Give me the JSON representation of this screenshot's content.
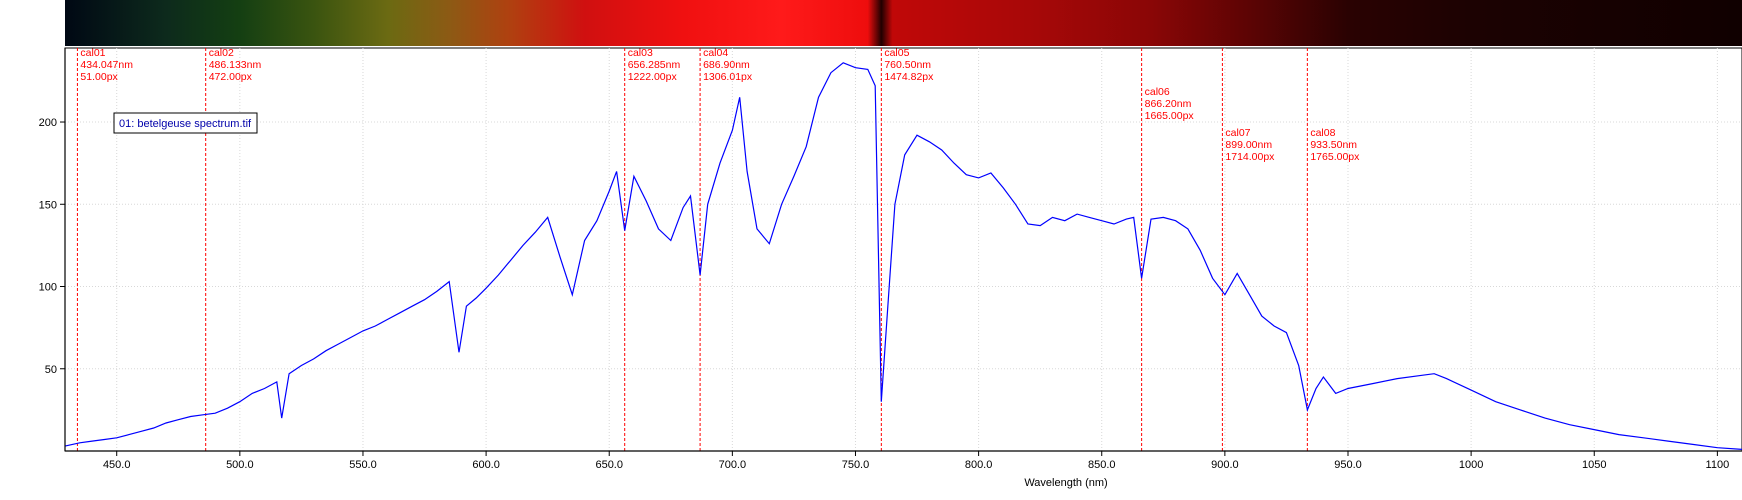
{
  "chart_data": {
    "type": "line",
    "title": "",
    "xlabel": "Wavelength (nm)",
    "ylabel": "",
    "xlim": [
      429,
      1110
    ],
    "ylim": [
      0,
      245
    ],
    "x_ticks": [
      {
        "value": 450,
        "label": "450.0"
      },
      {
        "value": 500,
        "label": "500.0"
      },
      {
        "value": 550,
        "label": "550.0"
      },
      {
        "value": 600,
        "label": "600.0"
      },
      {
        "value": 650,
        "label": "650.0"
      },
      {
        "value": 700,
        "label": "700.0"
      },
      {
        "value": 750,
        "label": "750.0"
      },
      {
        "value": 800,
        "label": "800.0"
      },
      {
        "value": 850,
        "label": "850.0"
      },
      {
        "value": 900,
        "label": "900.0"
      },
      {
        "value": 950,
        "label": "950.0"
      },
      {
        "value": 1000,
        "label": "1000"
      },
      {
        "value": 1050,
        "label": "1050"
      },
      {
        "value": 1100,
        "label": "1100"
      }
    ],
    "y_ticks": [
      {
        "value": 50,
        "label": "50"
      },
      {
        "value": 100,
        "label": "100"
      },
      {
        "value": 150,
        "label": "150"
      },
      {
        "value": 200,
        "label": "200"
      }
    ],
    "grid": true,
    "legend": {
      "label": "01: betelgeuse spectrum.tif",
      "position": "top-left"
    },
    "series": [
      {
        "name": "01: betelgeuse spectrum.tif",
        "color": "#0000ff",
        "points": [
          [
            429,
            3
          ],
          [
            435,
            5
          ],
          [
            440,
            6
          ],
          [
            445,
            7
          ],
          [
            450,
            8
          ],
          [
            455,
            10
          ],
          [
            460,
            12
          ],
          [
            465,
            14
          ],
          [
            470,
            17
          ],
          [
            475,
            19
          ],
          [
            480,
            21
          ],
          [
            485,
            22
          ],
          [
            490,
            23
          ],
          [
            495,
            26
          ],
          [
            500,
            30
          ],
          [
            505,
            35
          ],
          [
            510,
            38
          ],
          [
            515,
            42
          ],
          [
            517,
            20
          ],
          [
            520,
            47
          ],
          [
            525,
            52
          ],
          [
            530,
            56
          ],
          [
            535,
            61
          ],
          [
            540,
            65
          ],
          [
            545,
            69
          ],
          [
            550,
            73
          ],
          [
            555,
            76
          ],
          [
            560,
            80
          ],
          [
            565,
            84
          ],
          [
            570,
            88
          ],
          [
            575,
            92
          ],
          [
            580,
            97
          ],
          [
            585,
            103
          ],
          [
            589,
            60
          ],
          [
            592,
            88
          ],
          [
            596,
            93
          ],
          [
            600,
            99
          ],
          [
            605,
            107
          ],
          [
            610,
            116
          ],
          [
            615,
            125
          ],
          [
            620,
            133
          ],
          [
            625,
            142
          ],
          [
            630,
            118
          ],
          [
            635,
            95
          ],
          [
            640,
            128
          ],
          [
            645,
            140
          ],
          [
            650,
            158
          ],
          [
            653,
            170
          ],
          [
            656.3,
            134
          ],
          [
            660,
            167
          ],
          [
            665,
            152
          ],
          [
            670,
            135
          ],
          [
            675,
            128
          ],
          [
            680,
            148
          ],
          [
            683,
            155
          ],
          [
            686.9,
            107
          ],
          [
            690,
            150
          ],
          [
            695,
            175
          ],
          [
            700,
            195
          ],
          [
            703,
            215
          ],
          [
            706,
            170
          ],
          [
            710,
            135
          ],
          [
            715,
            126
          ],
          [
            720,
            150
          ],
          [
            725,
            167
          ],
          [
            730,
            185
          ],
          [
            735,
            215
          ],
          [
            740,
            230
          ],
          [
            745,
            236
          ],
          [
            750,
            233
          ],
          [
            755,
            232
          ],
          [
            758,
            222
          ],
          [
            760.5,
            30
          ],
          [
            763,
            85
          ],
          [
            766,
            150
          ],
          [
            770,
            180
          ],
          [
            775,
            192
          ],
          [
            780,
            188
          ],
          [
            785,
            183
          ],
          [
            790,
            175
          ],
          [
            795,
            168
          ],
          [
            800,
            166
          ],
          [
            805,
            169
          ],
          [
            810,
            160
          ],
          [
            815,
            150
          ],
          [
            820,
            138
          ],
          [
            825,
            137
          ],
          [
            830,
            142
          ],
          [
            835,
            140
          ],
          [
            840,
            144
          ],
          [
            845,
            142
          ],
          [
            850,
            140
          ],
          [
            855,
            138
          ],
          [
            860,
            141
          ],
          [
            863,
            142
          ],
          [
            866.2,
            105
          ],
          [
            870,
            141
          ],
          [
            875,
            142
          ],
          [
            880,
            140
          ],
          [
            885,
            135
          ],
          [
            890,
            122
          ],
          [
            895,
            105
          ],
          [
            900,
            95
          ],
          [
            905,
            108
          ],
          [
            910,
            95
          ],
          [
            915,
            82
          ],
          [
            920,
            76
          ],
          [
            925,
            72
          ],
          [
            930,
            52
          ],
          [
            933.5,
            25
          ],
          [
            937,
            38
          ],
          [
            940,
            45
          ],
          [
            945,
            35
          ],
          [
            950,
            38
          ],
          [
            960,
            41
          ],
          [
            970,
            44
          ],
          [
            980,
            46
          ],
          [
            985,
            47
          ],
          [
            990,
            44
          ],
          [
            1000,
            37
          ],
          [
            1010,
            30
          ],
          [
            1020,
            25
          ],
          [
            1030,
            20
          ],
          [
            1040,
            16
          ],
          [
            1050,
            13
          ],
          [
            1060,
            10
          ],
          [
            1070,
            8
          ],
          [
            1080,
            6
          ],
          [
            1090,
            4
          ],
          [
            1100,
            2
          ],
          [
            1110,
            1
          ]
        ]
      }
    ],
    "calibration_markers": [
      {
        "id": "cal01",
        "wavelength": 434.047,
        "nm_label": "434.047nm",
        "px_label": "51.00px"
      },
      {
        "id": "cal02",
        "wavelength": 486.133,
        "nm_label": "486.133nm",
        "px_label": "472.00px"
      },
      {
        "id": "cal03",
        "wavelength": 656.285,
        "nm_label": "656.285nm",
        "px_label": "1222.00px"
      },
      {
        "id": "cal04",
        "wavelength": 686.9,
        "nm_label": "686.90nm",
        "px_label": "1306.01px"
      },
      {
        "id": "cal05",
        "wavelength": 760.5,
        "nm_label": "760.50nm",
        "px_label": "1474.82px"
      },
      {
        "id": "cal06",
        "wavelength": 866.2,
        "nm_label": "866.20nm",
        "px_label": "1665.00px"
      },
      {
        "id": "cal07",
        "wavelength": 899.0,
        "nm_label": "899.00nm",
        "px_label": "1714.00px"
      },
      {
        "id": "cal08",
        "wavelength": 933.5,
        "nm_label": "933.50nm",
        "px_label": "1765.00px"
      }
    ],
    "spectrum_strip_colors": [
      {
        "wavelength": 429,
        "color": "#000814"
      },
      {
        "wavelength": 470,
        "color": "#0d2a1c"
      },
      {
        "wavelength": 500,
        "color": "#143f12"
      },
      {
        "wavelength": 530,
        "color": "#3a5410"
      },
      {
        "wavelength": 560,
        "color": "#6b6a12"
      },
      {
        "wavelength": 585,
        "color": "#8c5a14"
      },
      {
        "wavelength": 610,
        "color": "#b04010"
      },
      {
        "wavelength": 640,
        "color": "#d01010"
      },
      {
        "wavelength": 680,
        "color": "#f01010"
      },
      {
        "wavelength": 720,
        "color": "#ff1a1a"
      },
      {
        "wavelength": 755,
        "color": "#ee0d0d"
      },
      {
        "wavelength": 760.5,
        "color": "#200000"
      },
      {
        "wavelength": 765,
        "color": "#c00808"
      },
      {
        "wavelength": 820,
        "color": "#a80808"
      },
      {
        "wavelength": 870,
        "color": "#8a0606"
      },
      {
        "wavelength": 910,
        "color": "#5c0404"
      },
      {
        "wavelength": 950,
        "color": "#2a0202"
      },
      {
        "wavelength": 1000,
        "color": "#1c0202"
      },
      {
        "wavelength": 1110,
        "color": "#100000"
      }
    ]
  }
}
